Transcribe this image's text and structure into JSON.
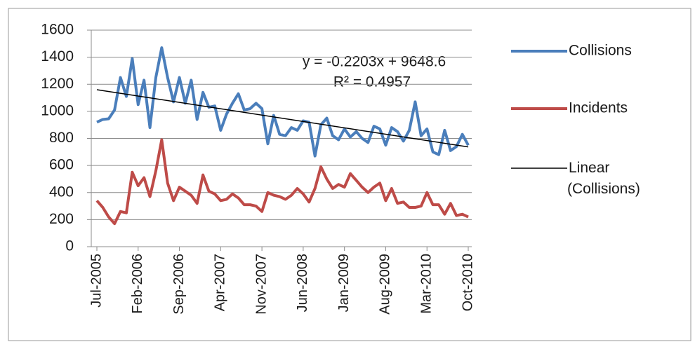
{
  "chart_data": {
    "type": "line",
    "categories": [
      "Jul-2005",
      null,
      null,
      null,
      null,
      null,
      null,
      "Feb-2006",
      null,
      null,
      null,
      null,
      null,
      null,
      "Sep-2006",
      null,
      null,
      null,
      null,
      null,
      null,
      "Apr-2007",
      null,
      null,
      null,
      null,
      null,
      null,
      "Nov-2007",
      null,
      null,
      null,
      null,
      null,
      null,
      "Jun-2008",
      null,
      null,
      null,
      null,
      null,
      null,
      "Jan-2009",
      null,
      null,
      null,
      null,
      null,
      null,
      "Aug-2009",
      null,
      null,
      null,
      null,
      null,
      null,
      "Mar-2010",
      null,
      null,
      null,
      null,
      null,
      null,
      "Oct-2010"
    ],
    "series": [
      {
        "name": "Collisions",
        "color": "#4a7ebb",
        "values": [
          920,
          940,
          945,
          1010,
          1250,
          1110,
          1390,
          1050,
          1230,
          880,
          1250,
          1470,
          1250,
          1070,
          1250,
          1060,
          1230,
          940,
          1140,
          1030,
          1040,
          860,
          980,
          1060,
          1130,
          1010,
          1020,
          1060,
          1020,
          760,
          970,
          830,
          820,
          880,
          860,
          930,
          920,
          670,
          900,
          950,
          820,
          790,
          870,
          810,
          850,
          800,
          770,
          890,
          870,
          750,
          880,
          850,
          780,
          860,
          1070,
          820,
          870,
          700,
          680,
          860,
          710,
          740,
          830,
          750
        ]
      },
      {
        "name": "Incidents",
        "color": "#be4b48",
        "values": [
          340,
          290,
          220,
          170,
          260,
          250,
          550,
          450,
          510,
          370,
          560,
          790,
          470,
          340,
          440,
          410,
          380,
          320,
          530,
          410,
          390,
          340,
          350,
          390,
          360,
          310,
          310,
          300,
          260,
          400,
          380,
          370,
          350,
          380,
          430,
          390,
          330,
          430,
          590,
          500,
          430,
          460,
          440,
          540,
          490,
          440,
          400,
          440,
          470,
          340,
          430,
          320,
          330,
          290,
          290,
          300,
          400,
          310,
          310,
          240,
          320,
          230,
          240,
          220
        ]
      }
    ],
    "trendline": {
      "name": "Linear (Collisions)",
      "color": "#000000",
      "values": [
        1160,
        737
      ],
      "equation": "y = -0.2203x + 9648.6",
      "r_squared": "R² = 0.4957"
    },
    "ylim": [
      0,
      1600
    ],
    "yticks": [
      0,
      200,
      400,
      600,
      800,
      1000,
      1200,
      1400,
      1600
    ],
    "grid": true,
    "legend": "right"
  }
}
